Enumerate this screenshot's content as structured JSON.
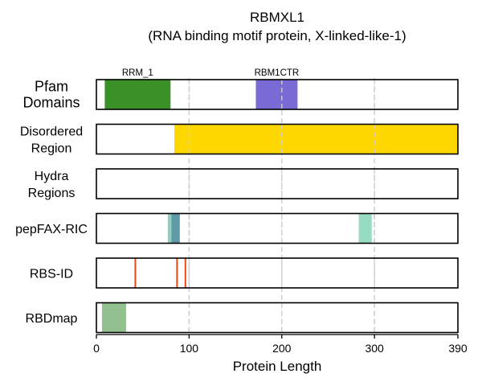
{
  "chart_data": {
    "type": "bar",
    "title": "RBMXL1",
    "subtitle": "(RNA binding motif protein, X-linked-like-1)",
    "xlabel": "Protein Length",
    "xlim": [
      0,
      390
    ],
    "xticks": [
      0,
      100,
      200,
      300,
      390
    ],
    "gridlines_x": [
      100,
      200,
      300
    ],
    "grid": "dashed vertical",
    "tracks": [
      {
        "label_lines": [
          "Pfam",
          "Domains"
        ],
        "features": [
          {
            "name": "RRM_1",
            "start": 9,
            "end": 80,
            "color": "#3a9127",
            "show_label": true
          },
          {
            "name": "RBM1CTR",
            "start": 172,
            "end": 217,
            "color": "#7a6ad6",
            "show_label": true
          }
        ]
      },
      {
        "label_lines": [
          "Disordered",
          "Region"
        ],
        "features": [
          {
            "name": "",
            "start": 84,
            "end": 390,
            "color": "#ffd700"
          }
        ]
      },
      {
        "label_lines": [
          "Hydra",
          "Regions"
        ],
        "features": []
      },
      {
        "label_lines": [
          "pepFAX-RIC"
        ],
        "features": [
          {
            "name": "",
            "start": 77,
            "end": 82,
            "color": "#8fcfc0"
          },
          {
            "name": "",
            "start": 81,
            "end": 90,
            "color": "#5f9aa8"
          },
          {
            "name": "",
            "start": 283,
            "end": 297,
            "color": "#95dcc0"
          }
        ]
      },
      {
        "label_lines": [
          "RBS-ID"
        ],
        "features": [
          {
            "name": "",
            "position": 42,
            "color": "#e64a10",
            "kind": "line"
          },
          {
            "name": "",
            "position": 87,
            "color": "#e64a10",
            "kind": "line"
          },
          {
            "name": "",
            "position": 96,
            "color": "#e64a10",
            "kind": "line"
          }
        ]
      },
      {
        "label_lines": [
          "RBDmap"
        ],
        "features": [
          {
            "name": "",
            "start": 6,
            "end": 32,
            "color": "#93c08f"
          }
        ]
      }
    ]
  }
}
